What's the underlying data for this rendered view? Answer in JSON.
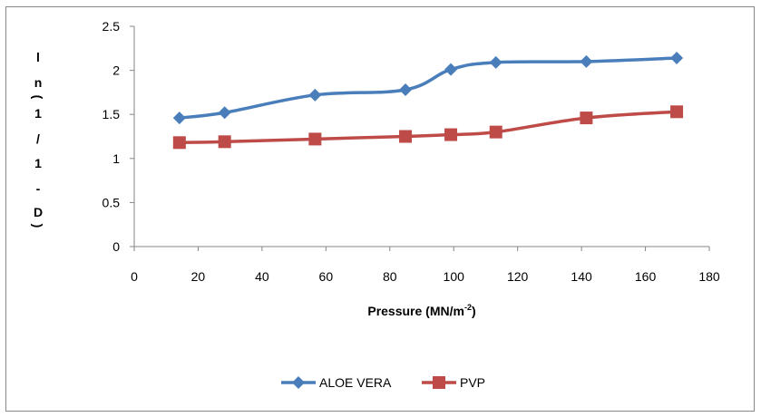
{
  "chart_data": {
    "type": "line",
    "title": "",
    "xlabel": "Pressure (MN/m",
    "xlabel_superscript": "-2",
    "xlabel_suffix": ")",
    "ylabel_chars": [
      "l",
      "n",
      "(",
      "1",
      "/",
      "1",
      "-",
      "D",
      ")"
    ],
    "ylabel": "ln(1/1-D)",
    "xlim": [
      0,
      180
    ],
    "ylim": [
      0,
      2.5
    ],
    "xticks": [
      0,
      20,
      40,
      60,
      80,
      100,
      120,
      140,
      160,
      180
    ],
    "yticks": [
      0,
      0.5,
      1,
      1.5,
      2,
      2.5
    ],
    "ytick_labels": [
      "0",
      "0.5",
      "1",
      "1.5",
      "2",
      "2.5"
    ],
    "grid": false,
    "smooth": true,
    "legend_position": "bottom",
    "x": [
      14.15,
      28.3,
      56.6,
      84.9,
      99.1,
      113.2,
      141.5,
      169.8
    ],
    "series": [
      {
        "name": "ALOE VERA",
        "color": "#4a7ebb",
        "marker": "diamond",
        "values": [
          1.46,
          1.52,
          1.72,
          1.78,
          2.01,
          2.09,
          2.1,
          2.14
        ]
      },
      {
        "name": "PVP",
        "color": "#be4b48",
        "marker": "square",
        "values": [
          1.18,
          1.19,
          1.22,
          1.25,
          1.27,
          1.3,
          1.46,
          1.53
        ]
      }
    ]
  }
}
